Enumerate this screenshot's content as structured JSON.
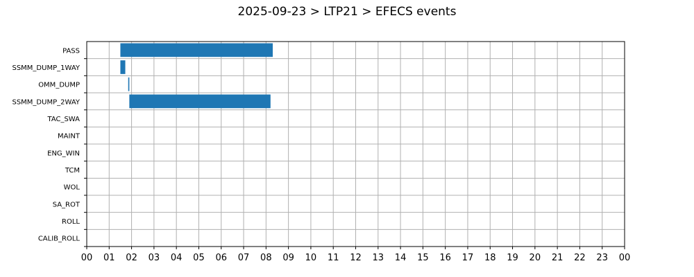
{
  "chart_data": {
    "type": "bar",
    "orientation": "horizontal-timeline",
    "title": "2025-09-23 > LTP21 > EFECS events",
    "xlabel": "",
    "ylabel": "",
    "x_unit": "hours",
    "xlim": [
      0,
      24
    ],
    "x_ticks": [
      0,
      1,
      2,
      3,
      4,
      5,
      6,
      7,
      8,
      9,
      10,
      11,
      12,
      13,
      14,
      15,
      16,
      17,
      18,
      19,
      20,
      21,
      22,
      23,
      24
    ],
    "x_tick_labels": [
      "00",
      "01",
      "02",
      "03",
      "04",
      "05",
      "06",
      "07",
      "08",
      "09",
      "10",
      "11",
      "12",
      "13",
      "14",
      "15",
      "16",
      "17",
      "18",
      "19",
      "20",
      "21",
      "22",
      "23",
      "00"
    ],
    "categories": [
      "PASS",
      "SSMM_DUMP_1WAY",
      "OMM_DUMP",
      "SSMM_DUMP_2WAY",
      "TAC_SWA",
      "MAINT",
      "ENG_WIN",
      "TCM",
      "WOL",
      "SA_ROT",
      "ROLL",
      "CALIB_ROLL"
    ],
    "events": [
      {
        "category": "PASS",
        "start": 1.5,
        "end": 8.3
      },
      {
        "category": "SSMM_DUMP_1WAY",
        "start": 1.5,
        "end": 1.72
      },
      {
        "category": "OMM_DUMP",
        "start": 1.85,
        "end": 1.9
      },
      {
        "category": "SSMM_DUMP_2WAY",
        "start": 1.9,
        "end": 8.2
      }
    ],
    "bar_color": "#1f77b4",
    "grid": true,
    "legend": "none"
  }
}
